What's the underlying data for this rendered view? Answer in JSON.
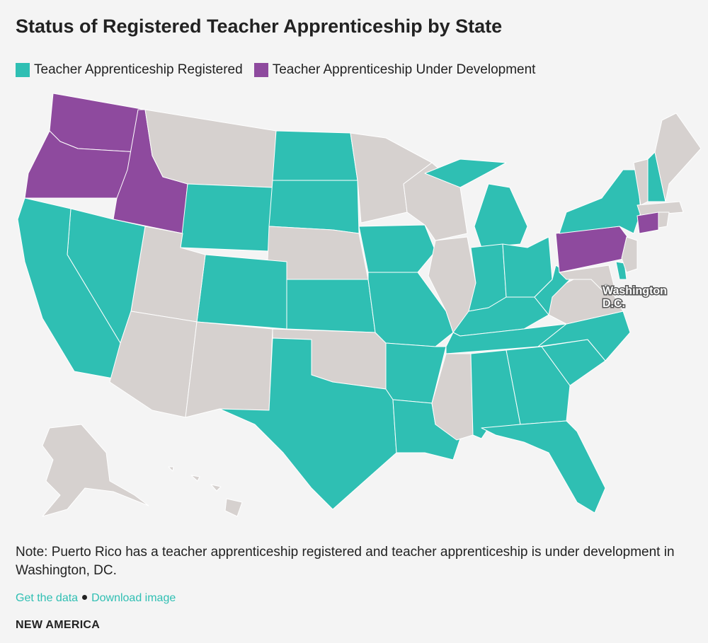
{
  "title": "Status of Registered Teacher Apprenticeship by State",
  "legend": [
    {
      "label": "Teacher Apprenticeship Registered",
      "color": "#2fbfb3"
    },
    {
      "label": "Teacher Apprenticeship Under Development",
      "color": "#8e4a9e"
    }
  ],
  "annotation": [
    "Washington",
    "D.C."
  ],
  "note": "Note: Puerto Rico has a teacher apprenticeship registered and teacher apprenticeship is under development in Washington, DC.",
  "links": [
    "Get the data",
    "Download image"
  ],
  "brand": "NEW AMERICA"
}
